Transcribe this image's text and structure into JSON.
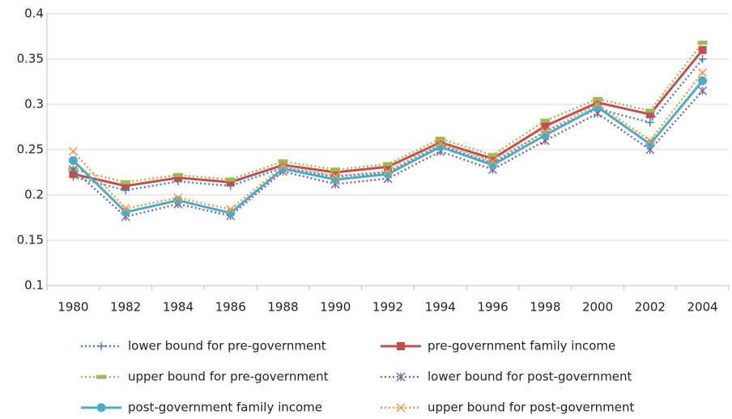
{
  "chart_data": {
    "type": "line",
    "categories": [
      "1980",
      "1982",
      "1984",
      "1986",
      "1988",
      "1990",
      "1992",
      "1994",
      "1996",
      "1998",
      "2000",
      "2002",
      "2004"
    ],
    "series": [
      {
        "name": "lower bound for pre-government",
        "color": "#4f81bd",
        "dash": "dotted",
        "marker": "plus",
        "values": [
          0.22,
          0.205,
          0.215,
          0.21,
          0.23,
          0.22,
          0.225,
          0.255,
          0.235,
          0.27,
          0.295,
          0.28,
          0.35
        ]
      },
      {
        "name": "pre-government family income",
        "color": "#c0504d",
        "dash": "solid",
        "marker": "square",
        "values": [
          0.223,
          0.21,
          0.219,
          0.214,
          0.233,
          0.225,
          0.231,
          0.258,
          0.24,
          0.276,
          0.302,
          0.289,
          0.36
        ]
      },
      {
        "name": "upper bound for pre-government",
        "color": "#9bbb59",
        "dash": "dotted",
        "marker": "dash",
        "values": [
          0.228,
          0.214,
          0.222,
          0.217,
          0.237,
          0.228,
          0.234,
          0.262,
          0.244,
          0.282,
          0.306,
          0.293,
          0.368
        ]
      },
      {
        "name": "lower bound for post-government",
        "color": "#8064a2",
        "dash": "dotted",
        "marker": "asterisk",
        "values": [
          0.228,
          0.176,
          0.19,
          0.177,
          0.226,
          0.212,
          0.218,
          0.248,
          0.228,
          0.26,
          0.29,
          0.25,
          0.315
        ]
      },
      {
        "name": "post-government family income",
        "color": "#4bacc6",
        "dash": "solid",
        "marker": "circle",
        "values": [
          0.238,
          0.181,
          0.194,
          0.18,
          0.229,
          0.217,
          0.223,
          0.253,
          0.233,
          0.266,
          0.297,
          0.256,
          0.326
        ]
      },
      {
        "name": "upper bound for post-government",
        "color": "#f79646",
        "dash": "dotted",
        "marker": "x",
        "values": [
          0.248,
          0.185,
          0.197,
          0.184,
          0.232,
          0.221,
          0.226,
          0.257,
          0.237,
          0.27,
          0.3,
          0.26,
          0.335
        ]
      }
    ],
    "ylim": [
      0.1,
      0.4
    ],
    "yticks": [
      0.1,
      0.15,
      0.2,
      0.25,
      0.3,
      0.35,
      0.4
    ],
    "grid": true,
    "legend": "bottom"
  }
}
